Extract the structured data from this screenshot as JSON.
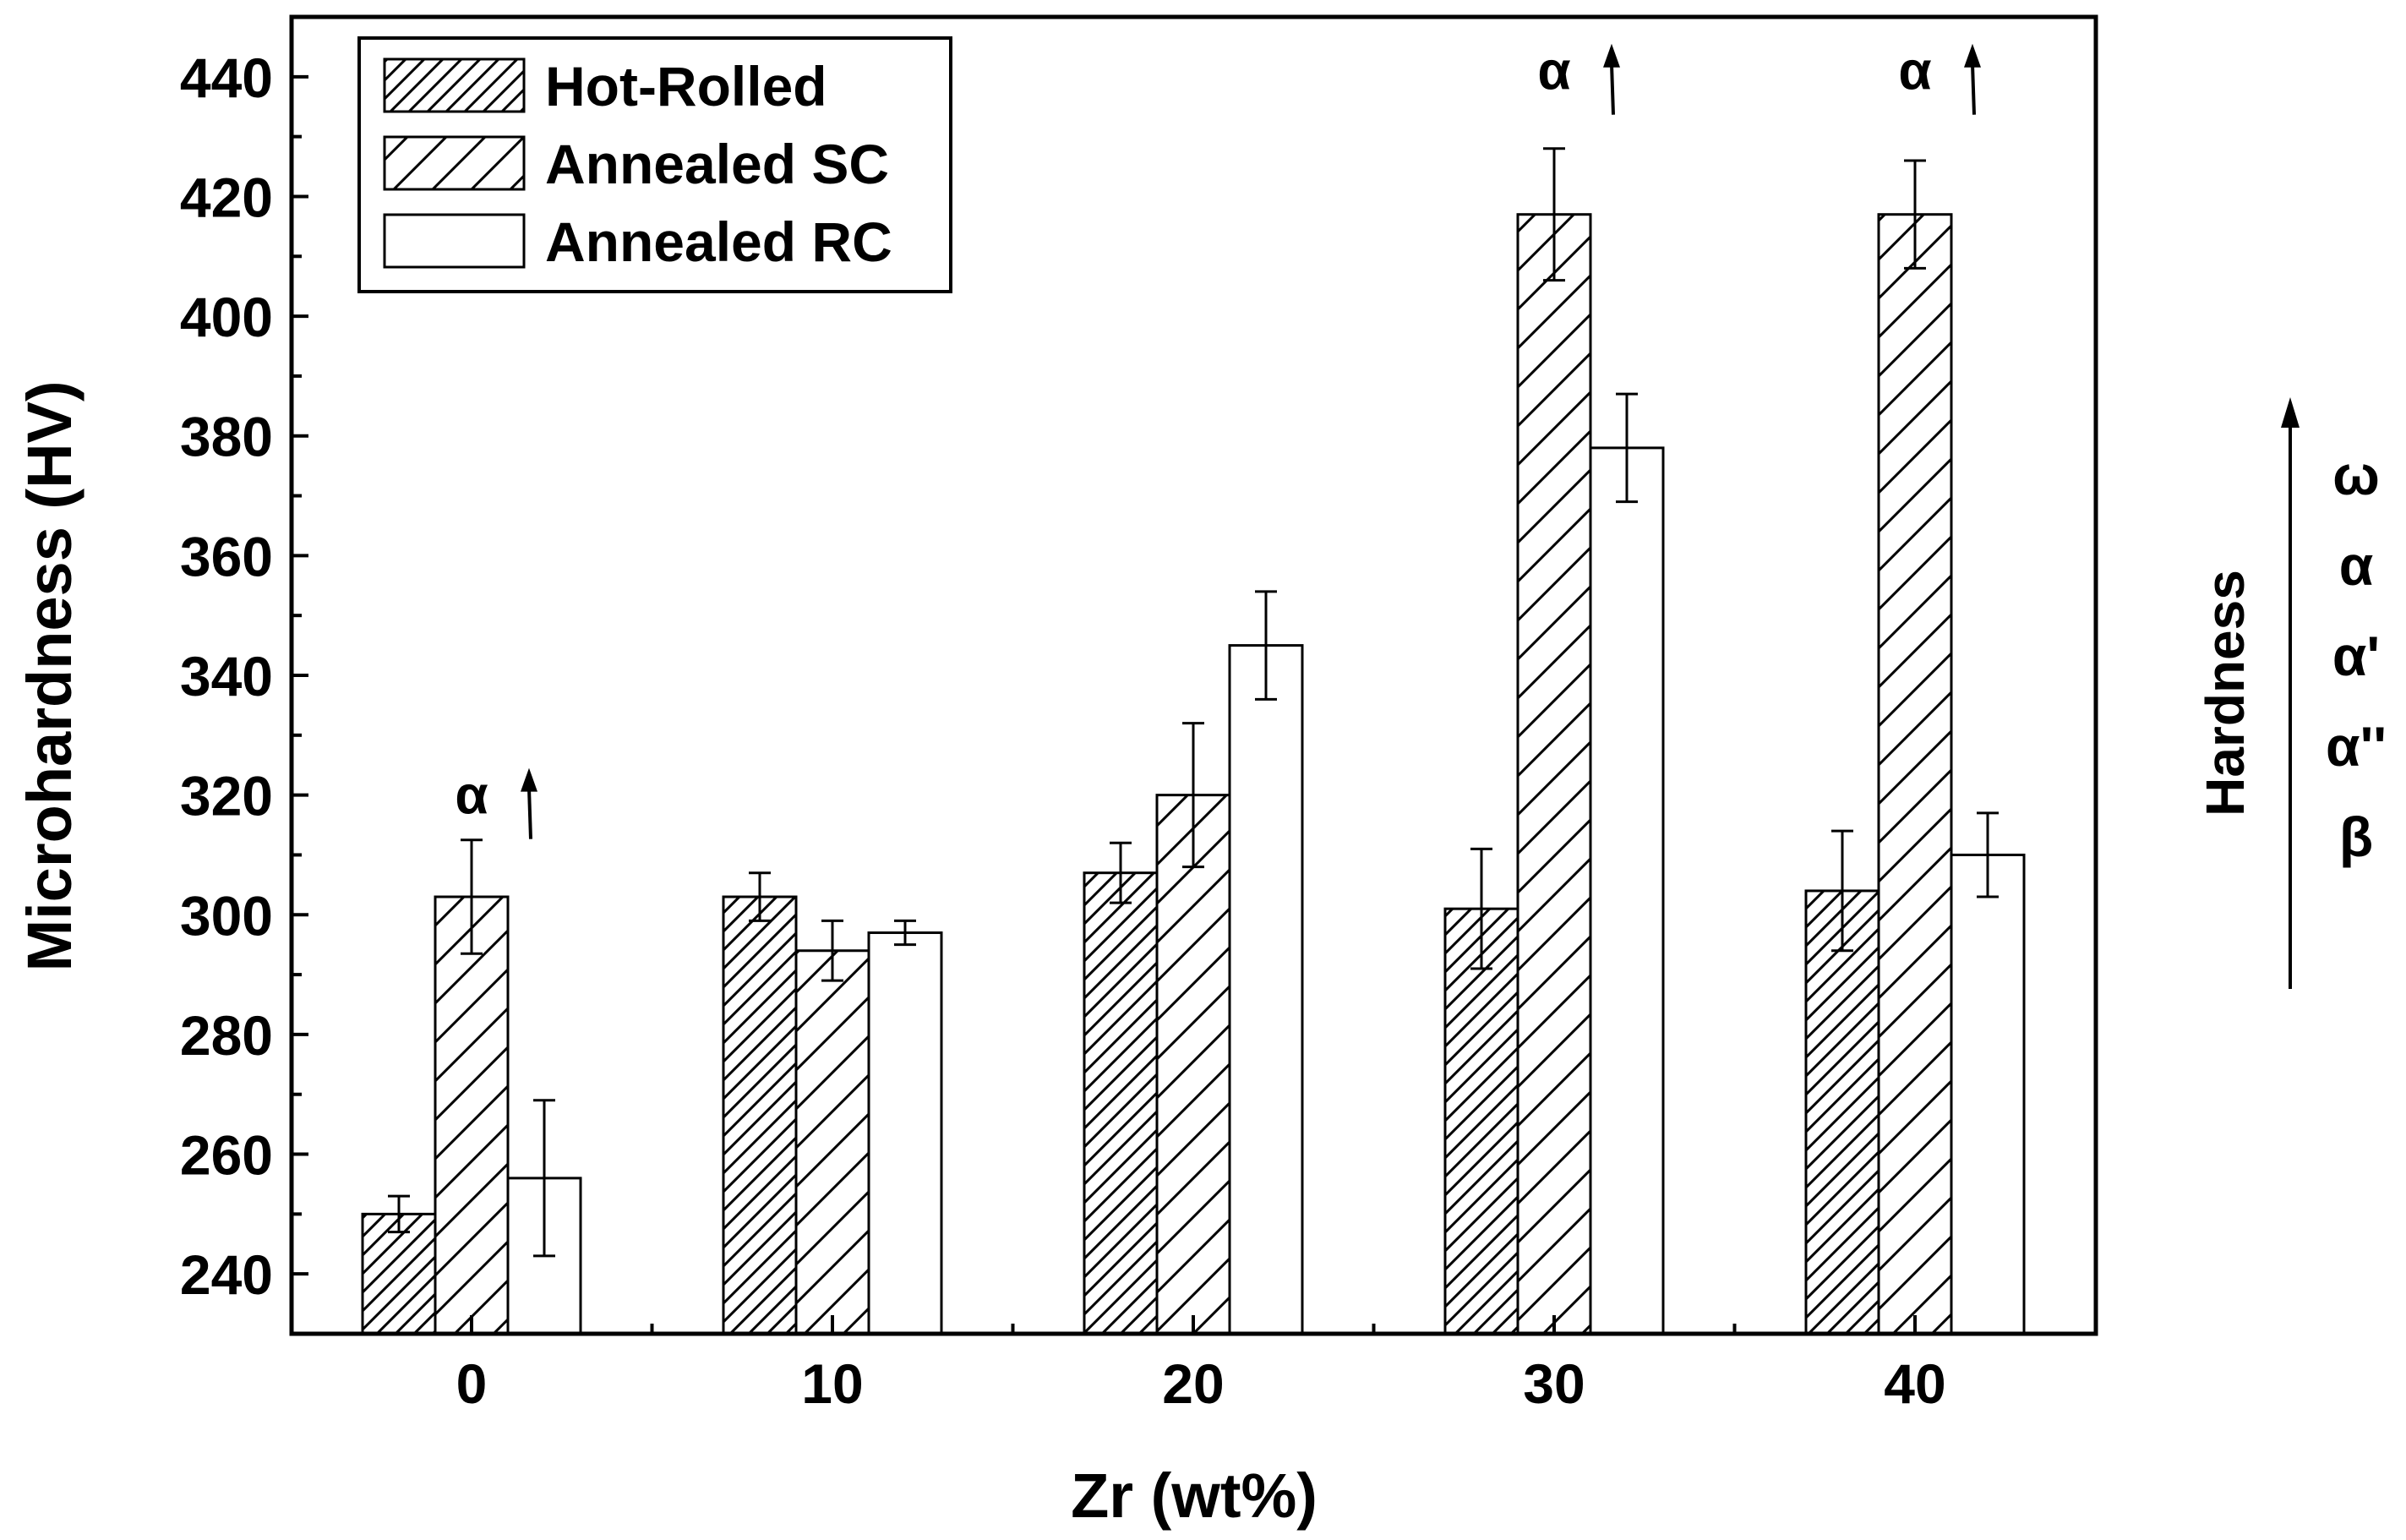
{
  "chart_data": {
    "type": "bar",
    "xlabel": "Zr (wt%)",
    "ylabel": "Microhardness (HV)",
    "categories": [
      "0",
      "10",
      "20",
      "30",
      "40"
    ],
    "ylim": [
      230,
      450
    ],
    "yticks": [
      240,
      260,
      280,
      300,
      320,
      340,
      360,
      380,
      400,
      420,
      440
    ],
    "ytick_labels": [
      "240",
      "260",
      "280",
      "300",
      "320",
      "340",
      "360",
      "380",
      "400",
      "420",
      "440"
    ],
    "legend_position": "top-left",
    "series": [
      {
        "name": "Hot-Rolled",
        "pattern": "dense-hatch",
        "values": [
          250,
          303,
          307,
          301,
          304
        ],
        "errors": [
          3,
          4,
          5,
          10,
          10
        ]
      },
      {
        "name": "Annealed SC",
        "pattern": "sparse-hatch",
        "values": [
          303,
          294,
          320,
          417,
          417
        ],
        "errors": [
          9.5,
          5,
          12,
          11,
          9
        ]
      },
      {
        "name": "Annealed RC",
        "pattern": "none",
        "values": [
          256,
          297,
          345,
          378,
          310
        ],
        "errors": [
          13,
          2,
          9,
          9,
          7
        ]
      }
    ],
    "annotations": [
      {
        "text": "α",
        "category": "0",
        "arrow": "up",
        "y": 320
      },
      {
        "text": "α",
        "category": "30",
        "arrow": "up",
        "y": 441
      },
      {
        "text": "α",
        "category": "40",
        "arrow": "up",
        "y": 441
      }
    ],
    "side_scale": {
      "axis_label": "Hardness",
      "direction": "increasing-up",
      "phases": [
        "ω",
        "α",
        "α'",
        "α''",
        "β"
      ]
    }
  },
  "colors": {
    "line": "#000000",
    "background": "#ffffff"
  }
}
